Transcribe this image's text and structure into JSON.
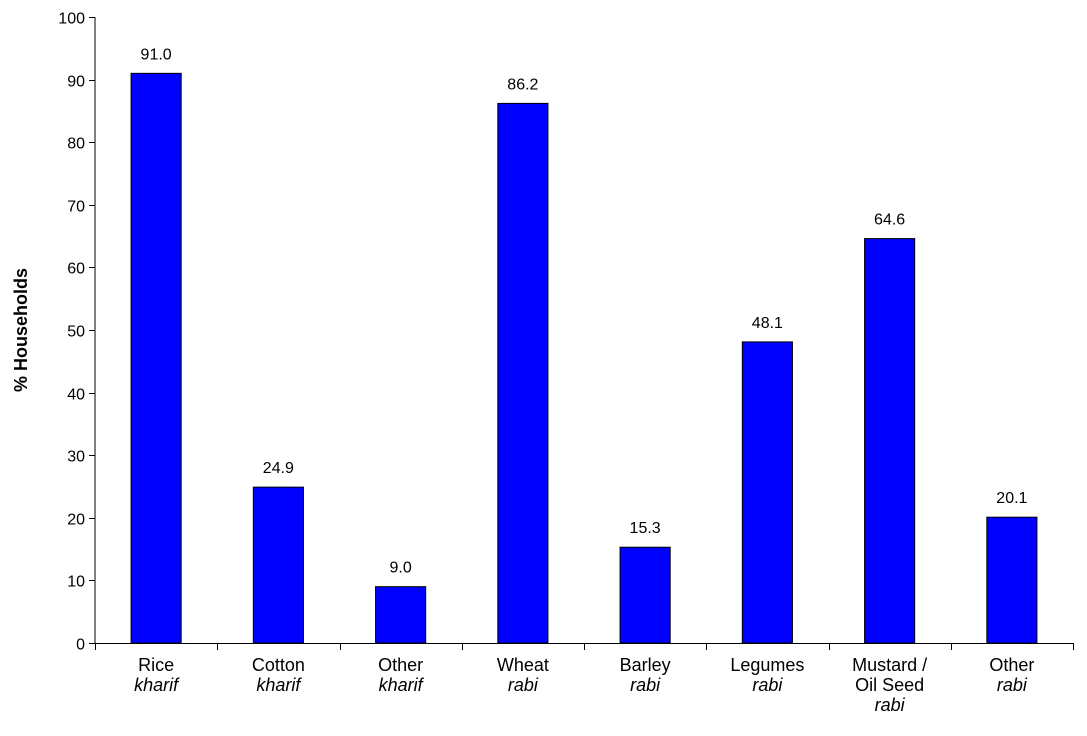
{
  "chart_data": {
    "type": "bar",
    "title": "",
    "xlabel": "",
    "ylabel": "% Households",
    "ylim": [
      0,
      100
    ],
    "yticks": [
      0,
      10,
      20,
      30,
      40,
      50,
      60,
      70,
      80,
      90,
      100
    ],
    "grid": false,
    "legend": "none",
    "bar_color": "#0000FF",
    "categories": [
      {
        "lines": [
          "Rice"
        ],
        "season": "kharif"
      },
      {
        "lines": [
          "Cotton"
        ],
        "season": "kharif"
      },
      {
        "lines": [
          "Other"
        ],
        "season": "kharif"
      },
      {
        "lines": [
          "Wheat"
        ],
        "season": "rabi"
      },
      {
        "lines": [
          "Barley"
        ],
        "season": "rabi"
      },
      {
        "lines": [
          "Legumes"
        ],
        "season": "rabi"
      },
      {
        "lines": [
          "Mustard /",
          "Oil Seed"
        ],
        "season": "rabi"
      },
      {
        "lines": [
          "Other"
        ],
        "season": "rabi"
      }
    ],
    "values": [
      91.0,
      24.9,
      9.0,
      86.2,
      15.3,
      48.1,
      64.6,
      20.1
    ],
    "value_labels": [
      "91.0",
      "24.9",
      "9.0",
      "86.2",
      "15.3",
      "48.1",
      "64.6",
      "20.1"
    ]
  }
}
